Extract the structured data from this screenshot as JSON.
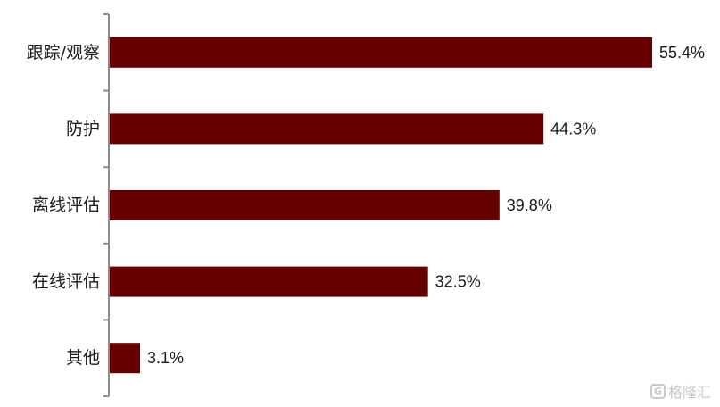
{
  "chart_data": {
    "type": "bar",
    "orientation": "horizontal",
    "categories": [
      "跟踪/观察",
      "防护",
      "离线评估",
      "在线评估",
      "其他"
    ],
    "values": [
      55.4,
      44.3,
      39.8,
      32.5,
      3.1
    ],
    "value_labels": [
      "55.4%",
      "44.3%",
      "39.8%",
      "32.5%",
      "3.1%"
    ],
    "unit": "%",
    "xlim": [
      0,
      55.4
    ],
    "bar_color": "#660000",
    "grid": false,
    "legend": "none"
  },
  "watermark": {
    "logo_icon": "gelonghui-logo-icon",
    "logo_text": "G",
    "text": "格隆汇"
  }
}
